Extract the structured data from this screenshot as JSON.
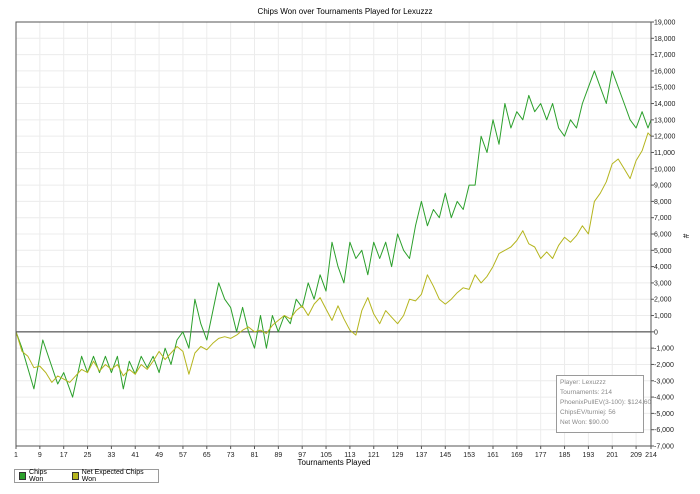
{
  "chart_data": {
    "type": "line",
    "title": "Chips Won over Tournaments Played for  Lexuzzz",
    "xlabel": "Tournaments Played",
    "ylabel": "#",
    "xlim": [
      1,
      214
    ],
    "ylim": [
      -7000,
      19000
    ],
    "x_ticks": [
      1,
      9,
      17,
      25,
      33,
      41,
      49,
      57,
      65,
      73,
      81,
      89,
      97,
      105,
      113,
      121,
      129,
      137,
      145,
      153,
      161,
      169,
      177,
      185,
      193,
      201,
      209,
      214
    ],
    "y_ticks": [
      -7000,
      -6000,
      -5000,
      -4000,
      -3000,
      -2000,
      -1000,
      0,
      1000,
      2000,
      3000,
      4000,
      5000,
      6000,
      7000,
      8000,
      9000,
      10000,
      11000,
      12000,
      13000,
      14000,
      15000,
      16000,
      17000,
      18000,
      19000
    ],
    "y_axis_side": "right",
    "grid": true,
    "legend_position": "bottom-left",
    "series": [
      {
        "name": "Chips Won",
        "color": "#2ca02c",
        "points": [
          [
            1,
            0
          ],
          [
            3,
            -1000
          ],
          [
            7,
            -3500
          ],
          [
            10,
            -500
          ],
          [
            15,
            -3200
          ],
          [
            17,
            -2500
          ],
          [
            20,
            -4000
          ],
          [
            23,
            -1500
          ],
          [
            25,
            -2500
          ],
          [
            27,
            -1500
          ],
          [
            29,
            -2500
          ],
          [
            31,
            -1500
          ],
          [
            33,
            -2500
          ],
          [
            35,
            -1500
          ],
          [
            37,
            -3500
          ],
          [
            39,
            -1800
          ],
          [
            41,
            -2600
          ],
          [
            43,
            -1500
          ],
          [
            45,
            -2200
          ],
          [
            47,
            -1500
          ],
          [
            49,
            -2500
          ],
          [
            51,
            -1000
          ],
          [
            53,
            -2000
          ],
          [
            55,
            -500
          ],
          [
            57,
            0
          ],
          [
            59,
            -1000
          ],
          [
            61,
            2000
          ],
          [
            63,
            500
          ],
          [
            65,
            -500
          ],
          [
            69,
            3000
          ],
          [
            71,
            2000
          ],
          [
            73,
            1500
          ],
          [
            75,
            0
          ],
          [
            77,
            1500
          ],
          [
            79,
            0
          ],
          [
            81,
            -1000
          ],
          [
            83,
            1000
          ],
          [
            85,
            -1000
          ],
          [
            87,
            1000
          ],
          [
            89,
            0
          ],
          [
            91,
            1000
          ],
          [
            93,
            500
          ],
          [
            95,
            2000
          ],
          [
            97,
            1500
          ],
          [
            99,
            3000
          ],
          [
            101,
            2000
          ],
          [
            103,
            3500
          ],
          [
            105,
            2500
          ],
          [
            107,
            5500
          ],
          [
            109,
            4000
          ],
          [
            111,
            3000
          ],
          [
            113,
            5500
          ],
          [
            115,
            4500
          ],
          [
            117,
            5000
          ],
          [
            119,
            3500
          ],
          [
            121,
            5500
          ],
          [
            123,
            4500
          ],
          [
            125,
            5500
          ],
          [
            127,
            4000
          ],
          [
            129,
            6000
          ],
          [
            131,
            5000
          ],
          [
            133,
            4500
          ],
          [
            135,
            6500
          ],
          [
            137,
            8000
          ],
          [
            139,
            6500
          ],
          [
            141,
            7500
          ],
          [
            143,
            7000
          ],
          [
            145,
            8500
          ],
          [
            147,
            7000
          ],
          [
            149,
            8000
          ],
          [
            151,
            7500
          ],
          [
            153,
            9000
          ],
          [
            155,
            9000
          ],
          [
            157,
            12000
          ],
          [
            159,
            11000
          ],
          [
            161,
            13000
          ],
          [
            163,
            11500
          ],
          [
            165,
            14000
          ],
          [
            167,
            12500
          ],
          [
            169,
            13500
          ],
          [
            171,
            13000
          ],
          [
            173,
            14500
          ],
          [
            175,
            13500
          ],
          [
            177,
            14000
          ],
          [
            179,
            13000
          ],
          [
            181,
            14000
          ],
          [
            183,
            12500
          ],
          [
            185,
            12000
          ],
          [
            187,
            13000
          ],
          [
            189,
            12500
          ],
          [
            191,
            14000
          ],
          [
            193,
            15000
          ],
          [
            195,
            16000
          ],
          [
            197,
            15000
          ],
          [
            199,
            14000
          ],
          [
            201,
            16000
          ],
          [
            203,
            15000
          ],
          [
            205,
            14000
          ],
          [
            207,
            13000
          ],
          [
            209,
            12500
          ],
          [
            211,
            13500
          ],
          [
            213,
            12500
          ],
          [
            214,
            13000
          ]
        ]
      },
      {
        "name": "Net Expected Chips Won",
        "color": "#b5b51e",
        "points": [
          [
            1,
            0
          ],
          [
            3,
            -1200
          ],
          [
            5,
            -1500
          ],
          [
            7,
            -2200
          ],
          [
            9,
            -2100
          ],
          [
            11,
            -2500
          ],
          [
            13,
            -3100
          ],
          [
            15,
            -2700
          ],
          [
            17,
            -2900
          ],
          [
            19,
            -3100
          ],
          [
            21,
            -2700
          ],
          [
            23,
            -2300
          ],
          [
            25,
            -2500
          ],
          [
            27,
            -1800
          ],
          [
            29,
            -2400
          ],
          [
            31,
            -2000
          ],
          [
            33,
            -2300
          ],
          [
            35,
            -2000
          ],
          [
            37,
            -2700
          ],
          [
            39,
            -2300
          ],
          [
            41,
            -2600
          ],
          [
            43,
            -2000
          ],
          [
            45,
            -2300
          ],
          [
            47,
            -1800
          ],
          [
            49,
            -1200
          ],
          [
            51,
            -1700
          ],
          [
            53,
            -1300
          ],
          [
            55,
            -900
          ],
          [
            57,
            -1200
          ],
          [
            59,
            -2600
          ],
          [
            61,
            -1300
          ],
          [
            63,
            -900
          ],
          [
            65,
            -1100
          ],
          [
            67,
            -700
          ],
          [
            69,
            -400
          ],
          [
            71,
            -300
          ],
          [
            73,
            -400
          ],
          [
            75,
            -200
          ],
          [
            77,
            100
          ],
          [
            79,
            300
          ],
          [
            81,
            0
          ],
          [
            83,
            100
          ],
          [
            85,
            -100
          ],
          [
            87,
            400
          ],
          [
            89,
            700
          ],
          [
            91,
            1000
          ],
          [
            93,
            800
          ],
          [
            95,
            1300
          ],
          [
            97,
            1600
          ],
          [
            99,
            1000
          ],
          [
            101,
            1700
          ],
          [
            103,
            2100
          ],
          [
            105,
            1400
          ],
          [
            107,
            700
          ],
          [
            109,
            1600
          ],
          [
            111,
            800
          ],
          [
            113,
            100
          ],
          [
            115,
            -200
          ],
          [
            117,
            1300
          ],
          [
            119,
            2100
          ],
          [
            121,
            1100
          ],
          [
            123,
            500
          ],
          [
            125,
            1300
          ],
          [
            127,
            900
          ],
          [
            129,
            500
          ],
          [
            131,
            1000
          ],
          [
            133,
            2000
          ],
          [
            135,
            1900
          ],
          [
            137,
            2300
          ],
          [
            139,
            3500
          ],
          [
            141,
            2800
          ],
          [
            143,
            2000
          ],
          [
            145,
            1700
          ],
          [
            147,
            2000
          ],
          [
            149,
            2400
          ],
          [
            151,
            2700
          ],
          [
            153,
            2600
          ],
          [
            155,
            3500
          ],
          [
            157,
            3000
          ],
          [
            159,
            3400
          ],
          [
            161,
            4000
          ],
          [
            163,
            4800
          ],
          [
            165,
            5000
          ],
          [
            167,
            5200
          ],
          [
            169,
            5600
          ],
          [
            171,
            6200
          ],
          [
            173,
            5400
          ],
          [
            175,
            5200
          ],
          [
            177,
            4500
          ],
          [
            179,
            4900
          ],
          [
            181,
            4500
          ],
          [
            183,
            5300
          ],
          [
            185,
            5800
          ],
          [
            187,
            5500
          ],
          [
            189,
            5900
          ],
          [
            191,
            6500
          ],
          [
            193,
            6000
          ],
          [
            195,
            8000
          ],
          [
            197,
            8500
          ],
          [
            199,
            9200
          ],
          [
            201,
            10300
          ],
          [
            203,
            10600
          ],
          [
            205,
            10000
          ],
          [
            207,
            9400
          ],
          [
            209,
            10500
          ],
          [
            211,
            11100
          ],
          [
            213,
            12200
          ],
          [
            214,
            12000
          ]
        ]
      }
    ]
  },
  "info_box": {
    "player": "Player: Lexuzzz",
    "tournaments": "Tournaments: 214",
    "phoenix_pull_ev": "PhoenixPullEV(3-100): $124.60",
    "chips_ev": "ChipsEV/turniej: 56",
    "net_won": "Net Won: $90.00"
  },
  "legend": {
    "items": [
      {
        "label": "Chips Won",
        "color": "#2ca02c"
      },
      {
        "label": "Net Expected Chips Won",
        "color": "#b5b51e"
      }
    ]
  }
}
